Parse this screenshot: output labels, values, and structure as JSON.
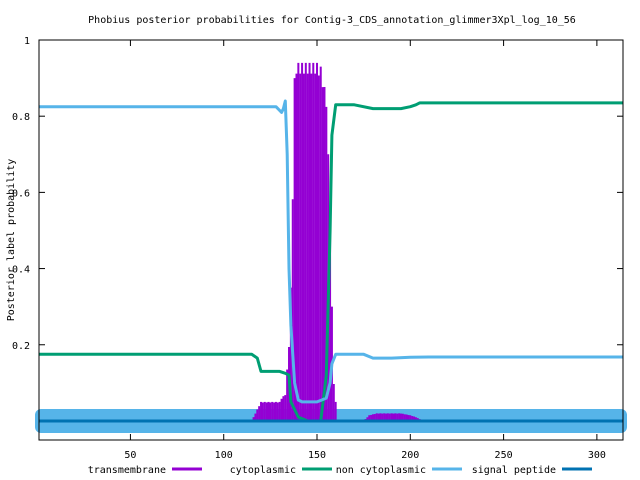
{
  "chart_data": {
    "type": "line",
    "title": "Phobius posterior probabilities for Contig-3_CDS_annotation_glimmer3Xpl_log_10_56",
    "xlabel": "",
    "ylabel": "Posterior label probability",
    "xlim": [
      1,
      314
    ],
    "ylim": [
      -0.05,
      1.0
    ],
    "x_ticks": [
      "50",
      "100",
      "150",
      "200",
      "250",
      "300"
    ],
    "x_tick_values": [
      50,
      100,
      150,
      200,
      250,
      300
    ],
    "y_ticks": [
      "0.2",
      "0.4",
      "0.6",
      "0.8",
      "1"
    ],
    "y_tick_values": [
      0.2,
      0.4,
      0.6,
      0.8,
      1.0
    ],
    "grid": false,
    "legend_position": "bottom",
    "series": [
      {
        "name": "transmembrane",
        "color": "#9400d3",
        "style": "impulses",
        "x": [
          1,
          115,
          116,
          120,
          125,
          130,
          131,
          133,
          135,
          136,
          137,
          138,
          139,
          140,
          142,
          145,
          150,
          152,
          155,
          156,
          157,
          158,
          159,
          160,
          161,
          175,
          178,
          182,
          190,
          195,
          200,
          203,
          205,
          206,
          314
        ],
        "y": [
          0,
          0,
          0.01,
          0.05,
          0.05,
          0.05,
          0.06,
          0.07,
          0.2,
          0.35,
          0.6,
          0.9,
          0.94,
          0.94,
          0.94,
          0.94,
          0.94,
          0.93,
          0.85,
          0.7,
          0.5,
          0.3,
          0.1,
          0.05,
          0,
          0,
          0.015,
          0.02,
          0.02,
          0.02,
          0.015,
          0.01,
          0.005,
          0,
          0
        ]
      },
      {
        "name": "cytoplasmic",
        "color": "#009e73",
        "style": "line",
        "x": [
          1,
          110,
          115,
          118,
          120,
          125,
          130,
          133,
          135,
          136,
          140,
          145,
          150,
          152,
          155,
          157,
          158,
          160,
          165,
          170,
          180,
          190,
          195,
          200,
          203,
          205,
          210,
          250,
          314
        ],
        "y": [
          0.175,
          0.175,
          0.175,
          0.165,
          0.13,
          0.13,
          0.13,
          0.125,
          0.12,
          0.05,
          0.01,
          0.0,
          0.0,
          0.0,
          0.12,
          0.5,
          0.75,
          0.83,
          0.83,
          0.83,
          0.82,
          0.82,
          0.82,
          0.825,
          0.83,
          0.835,
          0.835,
          0.835,
          0.835
        ]
      },
      {
        "name": "non cytoplasmic",
        "color": "#56b4e9",
        "style": "line",
        "x": [
          1,
          120,
          128,
          130,
          131,
          132,
          133,
          134,
          135,
          136,
          138,
          140,
          142,
          150,
          155,
          157,
          158,
          160,
          165,
          175,
          180,
          190,
          200,
          210,
          250,
          314
        ],
        "y": [
          0.825,
          0.825,
          0.825,
          0.815,
          0.81,
          0.82,
          0.84,
          0.7,
          0.4,
          0.25,
          0.1,
          0.055,
          0.05,
          0.05,
          0.06,
          0.1,
          0.15,
          0.175,
          0.175,
          0.175,
          0.165,
          0.165,
          0.167,
          0.168,
          0.168,
          0.168
        ]
      },
      {
        "name": "signal peptide",
        "color": "#0072b2",
        "style": "line",
        "x": [
          1,
          314
        ],
        "y": [
          0,
          0
        ]
      }
    ]
  }
}
